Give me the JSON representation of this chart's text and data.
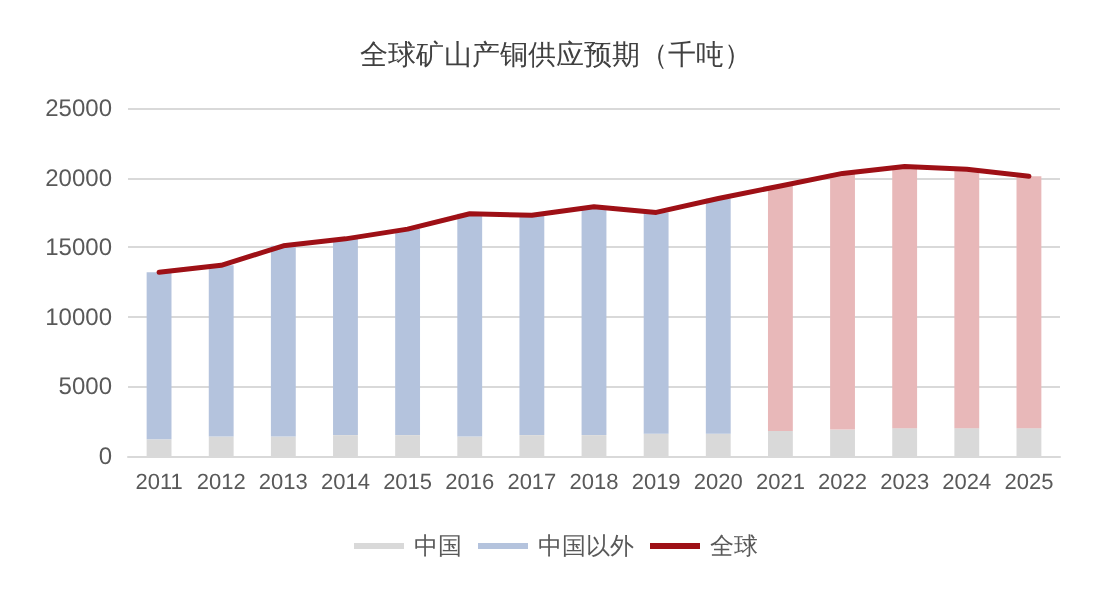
{
  "chart_data": {
    "type": "bar",
    "title": "全球矿山产铜供应预期（千吨）",
    "stacked": true,
    "categories": [
      "2011",
      "2012",
      "2013",
      "2014",
      "2015",
      "2016",
      "2017",
      "2018",
      "2019",
      "2020",
      "2021",
      "2022",
      "2023",
      "2024",
      "2025"
    ],
    "series": [
      {
        "name": "中国",
        "color": "#d9d9d9",
        "values": [
          1200,
          1400,
          1400,
          1500,
          1500,
          1400,
          1500,
          1500,
          1600,
          1600,
          1800,
          1900,
          2000,
          2000,
          2000
        ]
      },
      {
        "name": "中国以外",
        "color": "#b4c3dd",
        "colors": [
          "#b4c3dd",
          "#b4c3dd",
          "#b4c3dd",
          "#b4c3dd",
          "#b4c3dd",
          "#b4c3dd",
          "#b4c3dd",
          "#b4c3dd",
          "#b4c3dd",
          "#b4c3dd",
          "#e8b8b9",
          "#e8b8b9",
          "#e8b8b9",
          "#e8b8b9",
          "#e8b8b9"
        ],
        "values": [
          12000,
          12300,
          13700,
          14100,
          14800,
          16000,
          15800,
          16400,
          15900,
          16900,
          17600,
          18400,
          18800,
          18600,
          18100
        ]
      },
      {
        "name": "全球",
        "type": "line",
        "color": "#9e1016",
        "values": [
          13200,
          13700,
          15100,
          15600,
          16300,
          17400,
          17300,
          17900,
          17500,
          18500,
          19400,
          20300,
          20800,
          20600,
          20100
        ]
      }
    ],
    "ylim": [
      0,
      25000
    ],
    "yticks": [
      0,
      5000,
      10000,
      15000,
      20000,
      25000
    ],
    "grid": "y",
    "legend": "bottom",
    "marker": "none",
    "line_style": "solid"
  }
}
